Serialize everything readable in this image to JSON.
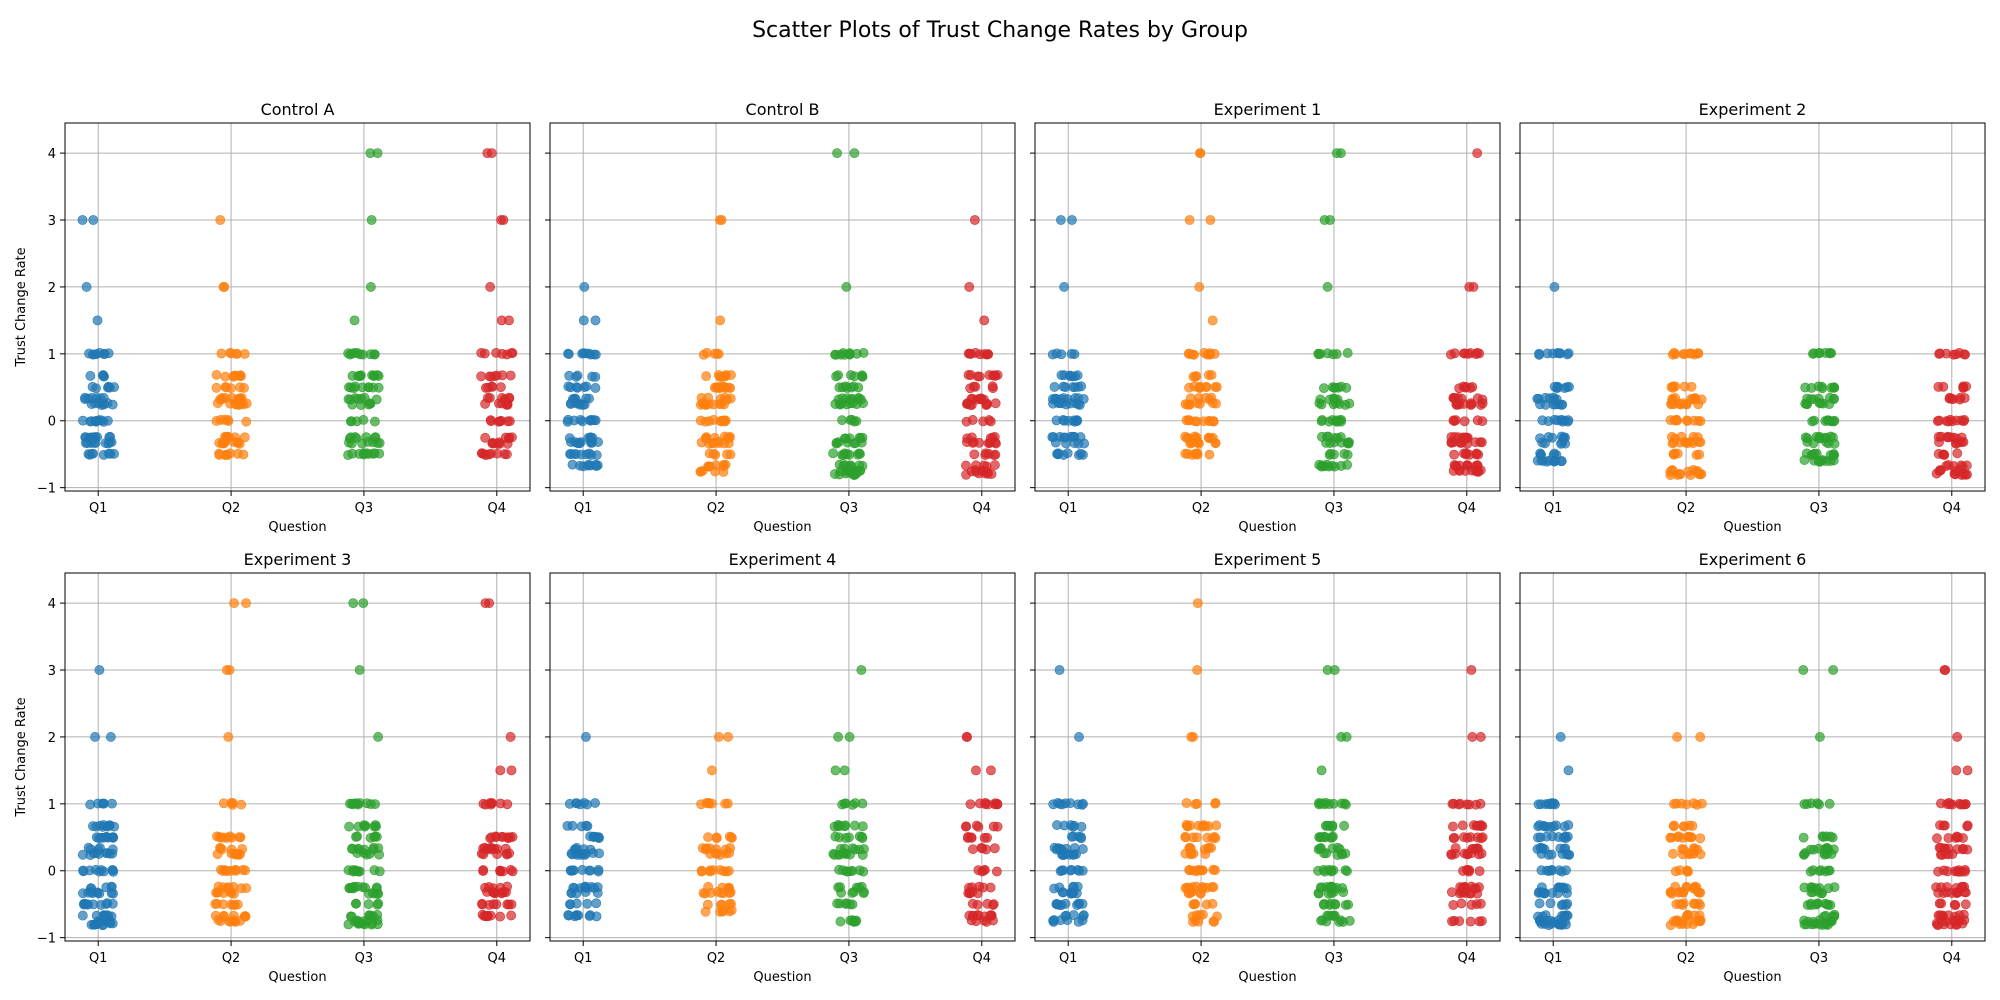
{
  "title": "Scatter Plots of Trust Change Rates by Group",
  "chart_data": {
    "type": "scatter",
    "title": "Scatter Plots of Trust Change Rates by Group",
    "categories": [
      "Q1",
      "Q2",
      "Q3",
      "Q4"
    ],
    "colors": [
      "#1f77b4",
      "#ff7f0e",
      "#2ca02c",
      "#d62728"
    ],
    "xlabel": "Question",
    "ylabel": "Trust Change Rate",
    "ylim": [
      -1,
      4
    ],
    "yticks": [
      -1,
      0,
      1,
      2,
      3,
      4
    ],
    "grid": true,
    "panels": [
      {
        "title": "Control A",
        "series": [
          {
            "category": "Q1",
            "values": [
              -0.5,
              -0.33,
              -0.25,
              0,
              0.25,
              0.33,
              0.5,
              0.67,
              1,
              1.5,
              2,
              3
            ]
          },
          {
            "category": "Q2",
            "values": [
              -0.5,
              -0.33,
              -0.25,
              0,
              0.25,
              0.33,
              0.5,
              0.67,
              1,
              2,
              3
            ]
          },
          {
            "category": "Q3",
            "values": [
              -0.5,
              -0.33,
              -0.25,
              0,
              0.25,
              0.33,
              0.5,
              0.67,
              1,
              1.5,
              2,
              3,
              4
            ]
          },
          {
            "category": "Q4",
            "values": [
              -0.5,
              -0.33,
              -0.25,
              0,
              0.25,
              0.33,
              0.5,
              0.67,
              1,
              1.5,
              2,
              3,
              4
            ]
          }
        ]
      },
      {
        "title": "Control B",
        "series": [
          {
            "category": "Q1",
            "values": [
              -0.67,
              -0.5,
              -0.33,
              -0.25,
              0,
              0.25,
              0.33,
              0.5,
              0.67,
              1,
              1.5,
              2
            ]
          },
          {
            "category": "Q2",
            "values": [
              -0.75,
              -0.67,
              -0.5,
              -0.33,
              -0.25,
              0,
              0.25,
              0.33,
              0.5,
              0.67,
              1,
              1.5,
              3
            ]
          },
          {
            "category": "Q3",
            "values": [
              -0.8,
              -0.75,
              -0.67,
              -0.5,
              -0.33,
              -0.25,
              0,
              0.25,
              0.33,
              0.5,
              0.67,
              1,
              2,
              4
            ]
          },
          {
            "category": "Q4",
            "values": [
              -0.8,
              -0.75,
              -0.67,
              -0.5,
              -0.33,
              -0.25,
              0,
              0.25,
              0.33,
              0.5,
              0.67,
              1,
              1.5,
              2,
              3
            ]
          }
        ]
      },
      {
        "title": "Experiment 1",
        "series": [
          {
            "category": "Q1",
            "values": [
              -0.5,
              -0.33,
              -0.25,
              0,
              0.25,
              0.33,
              0.5,
              0.67,
              1,
              2,
              3
            ]
          },
          {
            "category": "Q2",
            "values": [
              -0.5,
              -0.33,
              -0.25,
              0,
              0.25,
              0.33,
              0.5,
              0.67,
              1,
              1.5,
              2,
              3,
              4
            ]
          },
          {
            "category": "Q3",
            "values": [
              -0.67,
              -0.5,
              -0.33,
              -0.25,
              0,
              0.25,
              0.33,
              0.5,
              1,
              2,
              3,
              4
            ]
          },
          {
            "category": "Q4",
            "values": [
              -0.75,
              -0.67,
              -0.5,
              -0.33,
              -0.25,
              0,
              0.25,
              0.33,
              0.5,
              1,
              2,
              4
            ]
          }
        ]
      },
      {
        "title": "Experiment 2",
        "series": [
          {
            "category": "Q1",
            "values": [
              -0.6,
              -0.5,
              -0.33,
              -0.25,
              0,
              0.25,
              0.33,
              0.5,
              1,
              2
            ]
          },
          {
            "category": "Q2",
            "values": [
              -0.8,
              -0.75,
              -0.5,
              -0.33,
              -0.25,
              0,
              0.25,
              0.33,
              0.5,
              1
            ]
          },
          {
            "category": "Q3",
            "values": [
              -0.6,
              -0.5,
              -0.33,
              -0.25,
              0,
              0.25,
              0.33,
              0.5,
              1
            ]
          },
          {
            "category": "Q4",
            "values": [
              -0.8,
              -0.75,
              -0.67,
              -0.5,
              -0.33,
              -0.25,
              0,
              0.33,
              0.5,
              1
            ]
          }
        ]
      },
      {
        "title": "Experiment 3",
        "series": [
          {
            "category": "Q1",
            "values": [
              -0.8,
              -0.75,
              -0.67,
              -0.5,
              -0.33,
              -0.25,
              0,
              0.25,
              0.33,
              0.5,
              0.67,
              1,
              2,
              3
            ]
          },
          {
            "category": "Q2",
            "values": [
              -0.75,
              -0.67,
              -0.5,
              -0.33,
              -0.25,
              0,
              0.25,
              0.33,
              0.5,
              1,
              2,
              3,
              4
            ]
          },
          {
            "category": "Q3",
            "values": [
              -0.8,
              -0.75,
              -0.67,
              -0.5,
              -0.33,
              -0.25,
              0,
              0.25,
              0.33,
              0.5,
              0.67,
              1,
              2,
              3,
              4
            ]
          },
          {
            "category": "Q4",
            "values": [
              -0.67,
              -0.5,
              -0.33,
              -0.25,
              0,
              0.25,
              0.33,
              0.5,
              1,
              1.5,
              2,
              4
            ]
          }
        ]
      },
      {
        "title": "Experiment 4",
        "series": [
          {
            "category": "Q1",
            "values": [
              -0.67,
              -0.5,
              -0.33,
              -0.25,
              0,
              0.25,
              0.33,
              0.5,
              0.67,
              1,
              2
            ]
          },
          {
            "category": "Q2",
            "values": [
              -0.6,
              -0.5,
              -0.33,
              -0.25,
              0,
              0.25,
              0.33,
              0.5,
              1,
              1.5,
              2
            ]
          },
          {
            "category": "Q3",
            "values": [
              -0.75,
              -0.5,
              -0.33,
              -0.25,
              0,
              0.25,
              0.33,
              0.5,
              0.67,
              1,
              1.5,
              2,
              3
            ]
          },
          {
            "category": "Q4",
            "values": [
              -0.75,
              -0.67,
              -0.5,
              -0.33,
              -0.25,
              0,
              0.33,
              0.5,
              0.67,
              1,
              1.5,
              2
            ]
          }
        ]
      },
      {
        "title": "Experiment 5",
        "series": [
          {
            "category": "Q1",
            "values": [
              -0.75,
              -0.67,
              -0.5,
              -0.33,
              -0.25,
              0,
              0.25,
              0.33,
              0.5,
              0.67,
              1,
              2,
              3
            ]
          },
          {
            "category": "Q2",
            "values": [
              -0.75,
              -0.67,
              -0.5,
              -0.33,
              -0.25,
              0,
              0.25,
              0.33,
              0.5,
              0.67,
              1,
              2,
              3,
              4
            ]
          },
          {
            "category": "Q3",
            "values": [
              -0.75,
              -0.67,
              -0.5,
              -0.33,
              -0.25,
              0,
              0.25,
              0.33,
              0.5,
              0.67,
              1,
              1.5,
              2,
              3
            ]
          },
          {
            "category": "Q4",
            "values": [
              -0.75,
              -0.5,
              -0.33,
              -0.25,
              0,
              0.25,
              0.33,
              0.5,
              0.67,
              1,
              2,
              3
            ]
          }
        ]
      },
      {
        "title": "Experiment 6",
        "series": [
          {
            "category": "Q1",
            "values": [
              -0.8,
              -0.75,
              -0.67,
              -0.5,
              -0.33,
              -0.25,
              0,
              0.25,
              0.33,
              0.5,
              0.67,
              1,
              1.5,
              2
            ]
          },
          {
            "category": "Q2",
            "values": [
              -0.8,
              -0.75,
              -0.67,
              -0.5,
              -0.33,
              -0.25,
              0,
              0.25,
              0.33,
              0.5,
              0.67,
              1,
              2
            ]
          },
          {
            "category": "Q3",
            "values": [
              -0.8,
              -0.75,
              -0.67,
              -0.5,
              -0.33,
              -0.25,
              0,
              0.25,
              0.33,
              0.5,
              1,
              2,
              3
            ]
          },
          {
            "category": "Q4",
            "values": [
              -0.8,
              -0.75,
              -0.67,
              -0.5,
              -0.33,
              -0.25,
              0,
              0.25,
              0.33,
              0.5,
              0.67,
              1,
              1.5,
              2,
              3
            ]
          }
        ]
      }
    ]
  }
}
